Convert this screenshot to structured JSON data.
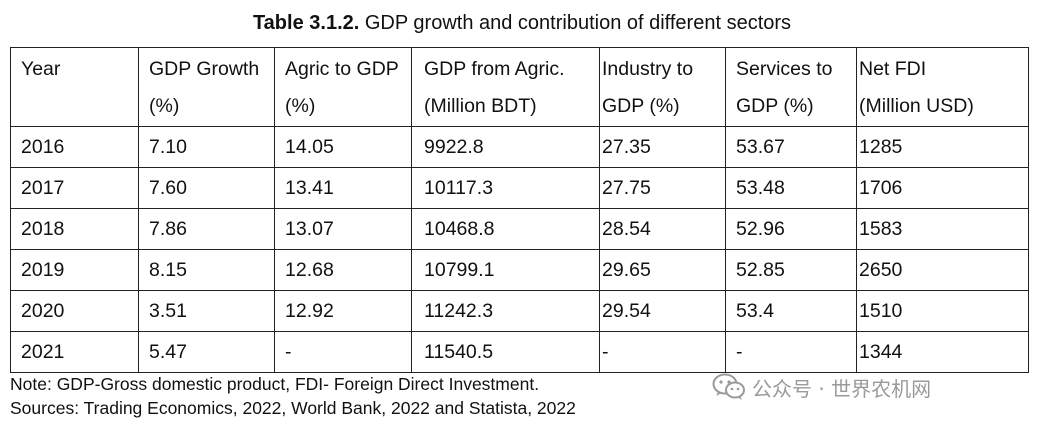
{
  "caption": {
    "label": "Table 3.1.2.",
    "title": "GDP growth and contribution of different sectors"
  },
  "table": {
    "headers": [
      {
        "line1": "Year",
        "line2": ""
      },
      {
        "line1": "GDP Growth",
        "line2": "(%)"
      },
      {
        "line1": "Agric to GDP",
        "line2": "(%)"
      },
      {
        "line1a": "GDP",
        "line1b": "from",
        "line1c": "Agric.",
        "line2": "(Million BDT)"
      },
      {
        "line1a": "Industry",
        "line1b": "to",
        "line2": "GDP (%)"
      },
      {
        "line1a": "Services",
        "line1b": "to",
        "line2": "GDP (%)"
      },
      {
        "line1": "Net FDI",
        "line2": "(Million USD)"
      }
    ],
    "rows": [
      [
        "2016",
        "7.10",
        "14.05",
        "9922.8",
        "27.35",
        "53.67",
        "1285"
      ],
      [
        "2017",
        "7.60",
        "13.41",
        "10117.3",
        "27.75",
        "53.48",
        "1706"
      ],
      [
        "2018",
        "7.86",
        "13.07",
        "10468.8",
        "28.54",
        "52.96",
        "1583"
      ],
      [
        "2019",
        "8.15",
        "12.68",
        "10799.1",
        "29.65",
        "52.85",
        "2650"
      ],
      [
        "2020",
        "3.51",
        "12.92",
        "11242.3",
        "29.54",
        "53.4",
        "1510"
      ],
      [
        "2021",
        "5.47",
        "-",
        "11540.5",
        "-",
        "-",
        "1344"
      ]
    ]
  },
  "notes": {
    "note": "Note: GDP-Gross domestic product, FDI- Foreign Direct Investment.",
    "sources": "Sources: Trading Economics, 2022, World Bank, 2022 and Statista, 2022"
  },
  "watermark": {
    "icon": "wechat-icon",
    "text": "公众号 · 世界农机网"
  }
}
